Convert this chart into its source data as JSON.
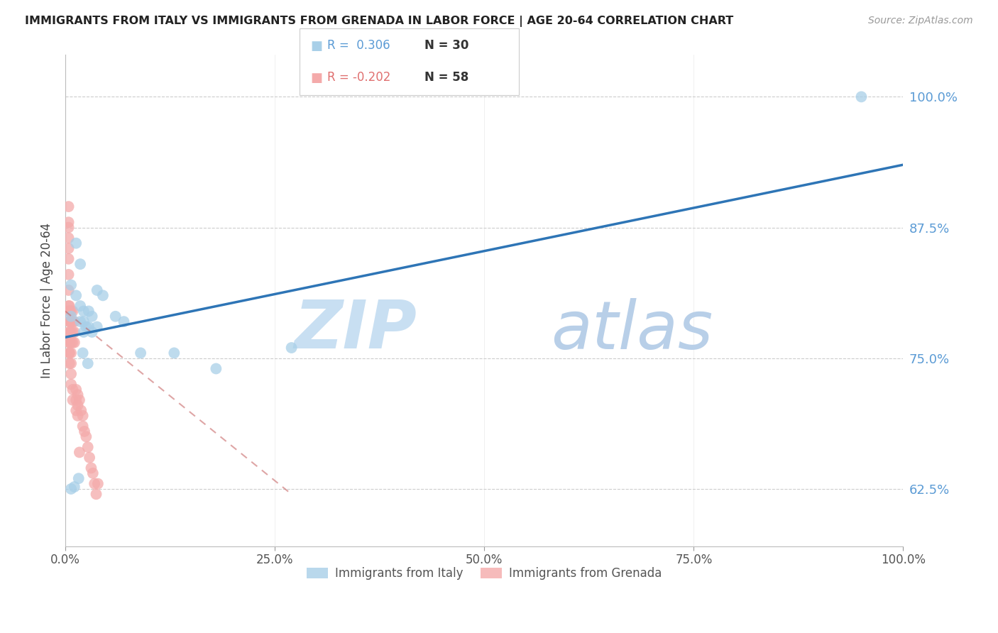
{
  "title": "IMMIGRANTS FROM ITALY VS IMMIGRANTS FROM GRENADA IN LABOR FORCE | AGE 20-64 CORRELATION CHART",
  "source": "Source: ZipAtlas.com",
  "ylabel": "In Labor Force | Age 20-64",
  "xlim": [
    0.0,
    1.0
  ],
  "ylim": [
    0.57,
    1.04
  ],
  "ytick_labels": [
    "62.5%",
    "75.0%",
    "87.5%",
    "100.0%"
  ],
  "ytick_values": [
    0.625,
    0.75,
    0.875,
    1.0
  ],
  "xtick_labels": [
    "0.0%",
    "25.0%",
    "50.0%",
    "75.0%",
    "100.0%"
  ],
  "xtick_values": [
    0.0,
    0.25,
    0.5,
    0.75,
    1.0
  ],
  "italy_color": "#a8cfe8",
  "grenada_color": "#f4aaaa",
  "italy_line_color": "#2e75b6",
  "grenada_line_color": "#c45c5c",
  "legend_italy_label": "Immigrants from Italy",
  "legend_grenada_label": "Immigrants from Grenada",
  "italy_R": 0.306,
  "italy_N": 30,
  "grenada_R": -0.202,
  "grenada_N": 58,
  "watermark_zip": "ZIP",
  "watermark_atlas": "atlas",
  "italy_scatter_x": [
    0.007,
    0.007,
    0.013,
    0.013,
    0.018,
    0.018,
    0.018,
    0.022,
    0.022,
    0.022,
    0.025,
    0.028,
    0.028,
    0.032,
    0.032,
    0.038,
    0.038,
    0.045,
    0.06,
    0.07,
    0.09,
    0.13,
    0.18,
    0.27,
    0.95,
    0.007,
    0.011,
    0.016,
    0.021,
    0.027
  ],
  "italy_scatter_y": [
    0.82,
    0.79,
    0.86,
    0.81,
    0.84,
    0.8,
    0.785,
    0.795,
    0.785,
    0.775,
    0.78,
    0.795,
    0.78,
    0.79,
    0.775,
    0.815,
    0.78,
    0.81,
    0.79,
    0.785,
    0.755,
    0.755,
    0.74,
    0.76,
    1.0,
    0.625,
    0.627,
    0.635,
    0.755,
    0.745
  ],
  "grenada_scatter_x": [
    0.004,
    0.004,
    0.004,
    0.004,
    0.004,
    0.004,
    0.004,
    0.004,
    0.004,
    0.005,
    0.005,
    0.005,
    0.005,
    0.005,
    0.005,
    0.005,
    0.005,
    0.005,
    0.005,
    0.005,
    0.005,
    0.007,
    0.007,
    0.007,
    0.007,
    0.007,
    0.007,
    0.007,
    0.007,
    0.009,
    0.009,
    0.009,
    0.009,
    0.009,
    0.009,
    0.011,
    0.011,
    0.011,
    0.013,
    0.013,
    0.013,
    0.015,
    0.015,
    0.015,
    0.017,
    0.017,
    0.019,
    0.021,
    0.021,
    0.023,
    0.025,
    0.027,
    0.029,
    0.031,
    0.033,
    0.035,
    0.037,
    0.039
  ],
  "grenada_scatter_y": [
    0.895,
    0.88,
    0.875,
    0.865,
    0.855,
    0.845,
    0.83,
    0.815,
    0.8,
    0.795,
    0.785,
    0.775,
    0.765,
    0.755,
    0.745,
    0.8,
    0.795,
    0.785,
    0.775,
    0.765,
    0.755,
    0.795,
    0.785,
    0.775,
    0.765,
    0.755,
    0.745,
    0.735,
    0.725,
    0.795,
    0.785,
    0.775,
    0.765,
    0.72,
    0.71,
    0.785,
    0.775,
    0.765,
    0.72,
    0.71,
    0.7,
    0.715,
    0.705,
    0.695,
    0.71,
    0.66,
    0.7,
    0.695,
    0.685,
    0.68,
    0.675,
    0.665,
    0.655,
    0.645,
    0.64,
    0.63,
    0.62,
    0.63
  ]
}
